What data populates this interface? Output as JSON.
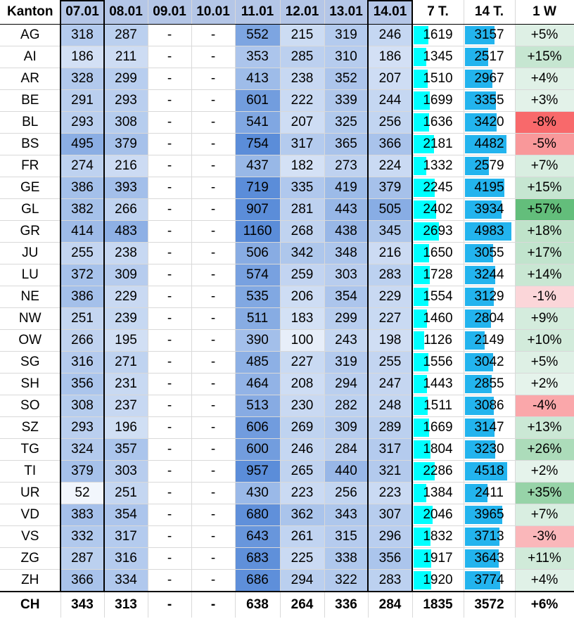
{
  "header": {
    "kanton": "Kanton",
    "days": [
      "07.01",
      "08.01",
      "09.01",
      "10.01",
      "11.01",
      "12.01",
      "13.01",
      "14.01"
    ],
    "t7": "7 T.",
    "t14": "14 T.",
    "w1": "1 W"
  },
  "rows": [
    {
      "k": "AG",
      "d": [
        "318",
        "287",
        "-",
        "-",
        "552",
        "215",
        "319",
        "246"
      ],
      "t7": "1619",
      "t14": "3157",
      "w": "+5%"
    },
    {
      "k": "AI",
      "d": [
        "186",
        "211",
        "-",
        "-",
        "353",
        "285",
        "310",
        "186"
      ],
      "t7": "1345",
      "t14": "2517",
      "w": "+15%"
    },
    {
      "k": "AR",
      "d": [
        "328",
        "299",
        "-",
        "-",
        "413",
        "238",
        "352",
        "207"
      ],
      "t7": "1510",
      "t14": "2967",
      "w": "+4%"
    },
    {
      "k": "BE",
      "d": [
        "291",
        "293",
        "-",
        "-",
        "601",
        "222",
        "339",
        "244"
      ],
      "t7": "1699",
      "t14": "3355",
      "w": "+3%"
    },
    {
      "k": "BL",
      "d": [
        "293",
        "308",
        "-",
        "-",
        "541",
        "207",
        "325",
        "256"
      ],
      "t7": "1636",
      "t14": "3420",
      "w": "-8%"
    },
    {
      "k": "BS",
      "d": [
        "495",
        "379",
        "-",
        "-",
        "754",
        "317",
        "365",
        "366"
      ],
      "t7": "2181",
      "t14": "4482",
      "w": "-5%"
    },
    {
      "k": "FR",
      "d": [
        "274",
        "216",
        "-",
        "-",
        "437",
        "182",
        "273",
        "224"
      ],
      "t7": "1332",
      "t14": "2579",
      "w": "+7%"
    },
    {
      "k": "GE",
      "d": [
        "386",
        "393",
        "-",
        "-",
        "719",
        "335",
        "419",
        "379"
      ],
      "t7": "2245",
      "t14": "4195",
      "w": "+15%"
    },
    {
      "k": "GL",
      "d": [
        "382",
        "266",
        "-",
        "-",
        "907",
        "281",
        "443",
        "505"
      ],
      "t7": "2402",
      "t14": "3934",
      "w": "+57%"
    },
    {
      "k": "GR",
      "d": [
        "414",
        "483",
        "-",
        "-",
        "1160",
        "268",
        "438",
        "345"
      ],
      "t7": "2693",
      "t14": "4983",
      "w": "+18%"
    },
    {
      "k": "JU",
      "d": [
        "255",
        "238",
        "-",
        "-",
        "506",
        "342",
        "348",
        "216"
      ],
      "t7": "1650",
      "t14": "3055",
      "w": "+17%"
    },
    {
      "k": "LU",
      "d": [
        "372",
        "309",
        "-",
        "-",
        "574",
        "259",
        "303",
        "283"
      ],
      "t7": "1728",
      "t14": "3244",
      "w": "+14%"
    },
    {
      "k": "NE",
      "d": [
        "386",
        "229",
        "-",
        "-",
        "535",
        "206",
        "354",
        "229"
      ],
      "t7": "1554",
      "t14": "3129",
      "w": "-1%"
    },
    {
      "k": "NW",
      "d": [
        "251",
        "239",
        "-",
        "-",
        "511",
        "183",
        "299",
        "227"
      ],
      "t7": "1460",
      "t14": "2804",
      "w": "+9%"
    },
    {
      "k": "OW",
      "d": [
        "266",
        "195",
        "-",
        "-",
        "390",
        "100",
        "243",
        "198"
      ],
      "t7": "1126",
      "t14": "2149",
      "w": "+10%"
    },
    {
      "k": "SG",
      "d": [
        "316",
        "271",
        "-",
        "-",
        "485",
        "227",
        "319",
        "255"
      ],
      "t7": "1556",
      "t14": "3042",
      "w": "+5%"
    },
    {
      "k": "SH",
      "d": [
        "356",
        "231",
        "-",
        "-",
        "464",
        "208",
        "294",
        "247"
      ],
      "t7": "1443",
      "t14": "2855",
      "w": "+2%"
    },
    {
      "k": "SO",
      "d": [
        "308",
        "237",
        "-",
        "-",
        "513",
        "230",
        "282",
        "248"
      ],
      "t7": "1511",
      "t14": "3086",
      "w": "-4%"
    },
    {
      "k": "SZ",
      "d": [
        "293",
        "196",
        "-",
        "-",
        "606",
        "269",
        "309",
        "289"
      ],
      "t7": "1669",
      "t14": "3147",
      "w": "+13%"
    },
    {
      "k": "TG",
      "d": [
        "324",
        "357",
        "-",
        "-",
        "600",
        "246",
        "284",
        "317"
      ],
      "t7": "1804",
      "t14": "3230",
      "w": "+26%"
    },
    {
      "k": "TI",
      "d": [
        "379",
        "303",
        "-",
        "-",
        "957",
        "265",
        "440",
        "321"
      ],
      "t7": "2286",
      "t14": "4518",
      "w": "+2%"
    },
    {
      "k": "UR",
      "d": [
        "52",
        "251",
        "-",
        "-",
        "430",
        "223",
        "256",
        "223"
      ],
      "t7": "1384",
      "t14": "2411",
      "w": "+35%"
    },
    {
      "k": "VD",
      "d": [
        "383",
        "354",
        "-",
        "-",
        "680",
        "362",
        "343",
        "307"
      ],
      "t7": "2046",
      "t14": "3965",
      "w": "+7%"
    },
    {
      "k": "VS",
      "d": [
        "332",
        "317",
        "-",
        "-",
        "643",
        "261",
        "315",
        "296"
      ],
      "t7": "1832",
      "t14": "3713",
      "w": "-3%"
    },
    {
      "k": "ZG",
      "d": [
        "287",
        "316",
        "-",
        "-",
        "683",
        "225",
        "338",
        "356"
      ],
      "t7": "1917",
      "t14": "3643",
      "w": "+11%"
    },
    {
      "k": "ZH",
      "d": [
        "366",
        "334",
        "-",
        "-",
        "686",
        "294",
        "322",
        "283"
      ],
      "t7": "1920",
      "t14": "3774",
      "w": "+4%"
    }
  ],
  "total": {
    "k": "CH",
    "d": [
      "343",
      "313",
      "-",
      "-",
      "638",
      "264",
      "336",
      "284"
    ],
    "t7": "1835",
    "t14": "3572",
    "w": "+6%"
  },
  "colors": {
    "header_fill": "#b4c6e7",
    "heat_low": "#f2f6fc",
    "heat_high": "#5b8dd9",
    "bar_7t": "#00ffff",
    "bar_14t": "#23b4ee",
    "pos_strong": "#63be7b",
    "neg_strong": "#f8696b"
  },
  "ranges": {
    "heat_min": 52,
    "heat_max": 1160,
    "bar_max": 4983,
    "pct_pos_max": 57,
    "pct_neg_min": -8
  }
}
